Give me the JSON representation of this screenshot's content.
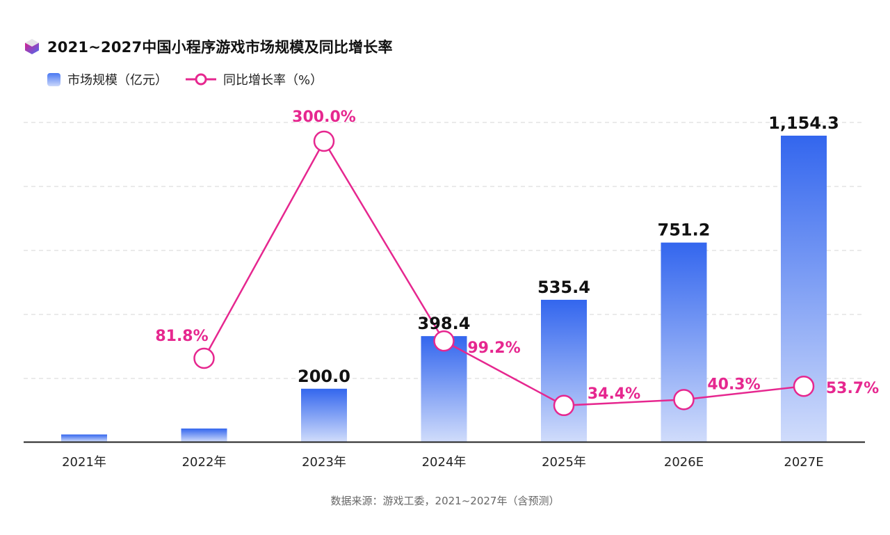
{
  "title": "2021~2027中国小程序游戏市场规模及同比增长率",
  "legend": {
    "bar": "市场规模（亿元）",
    "line": "同比增长率（%）"
  },
  "source": "数据来源：游戏工委，2021~2027年（含预测）",
  "colors": {
    "bar_top": "#3366ee",
    "bar_bottom": "#d0dcfb",
    "line": "#e6278f",
    "label": "#111111"
  },
  "chart_data": {
    "type": "bar",
    "title": "2021~2027中国小程序游戏市场规模及同比增长率",
    "xlabel": "",
    "ylabel": "",
    "categories": [
      "2021年",
      "2022年",
      "2023年",
      "2024年",
      "2025年",
      "2026E",
      "2027E"
    ],
    "series": [
      {
        "name": "市场规模（亿元）",
        "type": "bar",
        "values": [
          27.5,
          50.0,
          200.0,
          398.4,
          535.4,
          751.2,
          1154.3
        ],
        "labels": [
          "",
          "",
          "200.0",
          "398.4",
          "535.4",
          "751.2",
          "1,154.3"
        ]
      },
      {
        "name": "同比增长率（%）",
        "type": "line",
        "values": [
          null,
          81.8,
          300.0,
          99.2,
          34.4,
          40.3,
          53.7
        ],
        "labels": [
          "",
          "81.8%",
          "300.0%",
          "99.2%",
          "34.4%",
          "40.3%",
          "53.7%"
        ]
      }
    ],
    "ylim": [
      0,
      1200
    ],
    "y2lim": [
      0,
      300
    ],
    "grid": true,
    "legend_position": "top-left"
  }
}
